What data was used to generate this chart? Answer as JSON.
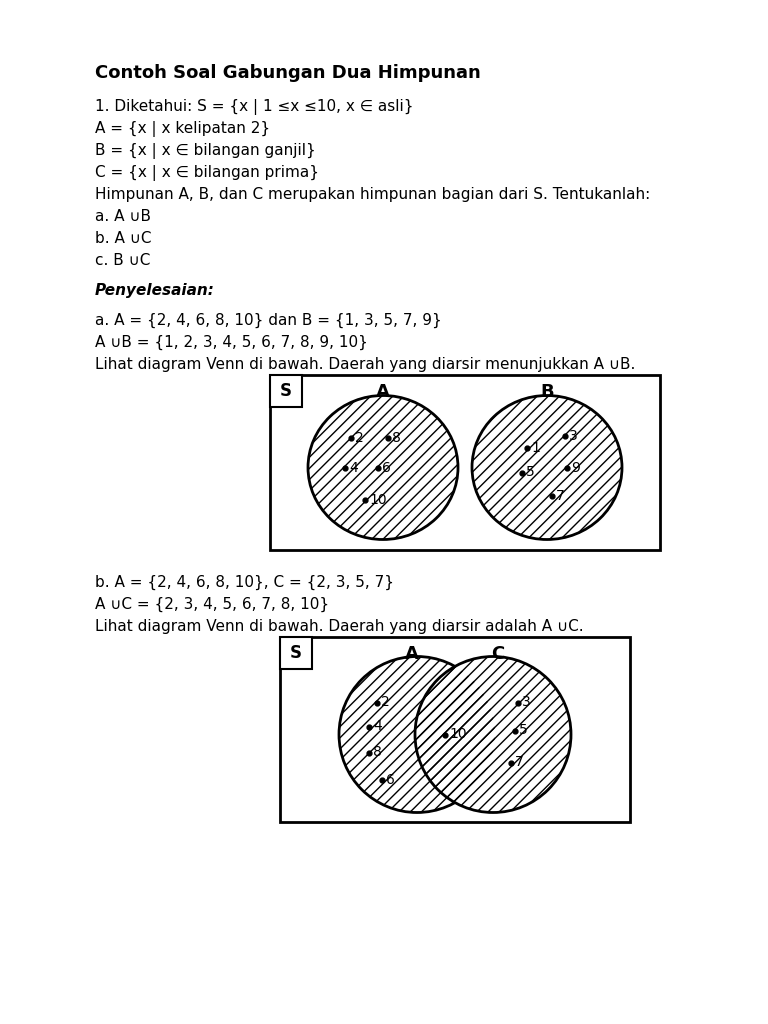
{
  "title": "Contoh Soal Gabungan Dua Himpunan",
  "line1": "1. Diketahui: S = {x | 1 ≤x ≤10, x ∈ asli}",
  "line2": "A = {x | x kelipatan 2}",
  "line3": "B = {x | x ∈ bilangan ganjil}",
  "line4": "C = {x | x ∈ bilangan prima}",
  "line5": "Himpunan A, B, dan C merupakan himpunan bagian dari S. Tentukanlah:",
  "line6a": "a. A ",
  "line6b": "B",
  "line7a": "b. A ",
  "line7b": "C",
  "line8a": "c. B ",
  "line8b": "C",
  "penyelesaian": "Penyelesaian",
  "pA1a": "a. A = {2, 4, 6, 8, 10} dan B = {1, 3, 5, 7, 9}",
  "pA2a": "A ",
  "pA2b": "B = {1, 2, 3, 4, 5, 6, 7, 8, 9, 10}",
  "pA3a": "Lihat diagram Venn di bawah. Daerah yang diarsir menunjukkan A ",
  "pA3b": "B.",
  "pB1a": "b. A = {2, 4, 6, 8, 10}, C = {2, 3, 5, 7}",
  "pB2a": "A ",
  "pB2b": "C = {2, 3, 4, 5, 6, 7, 8, 10}",
  "pB3a": "Lihat diagram Venn di bawah. Daerah yang diarsir adalah A ",
  "pB3b": "C.",
  "background_color": "#ffffff",
  "text_color": "#000000"
}
